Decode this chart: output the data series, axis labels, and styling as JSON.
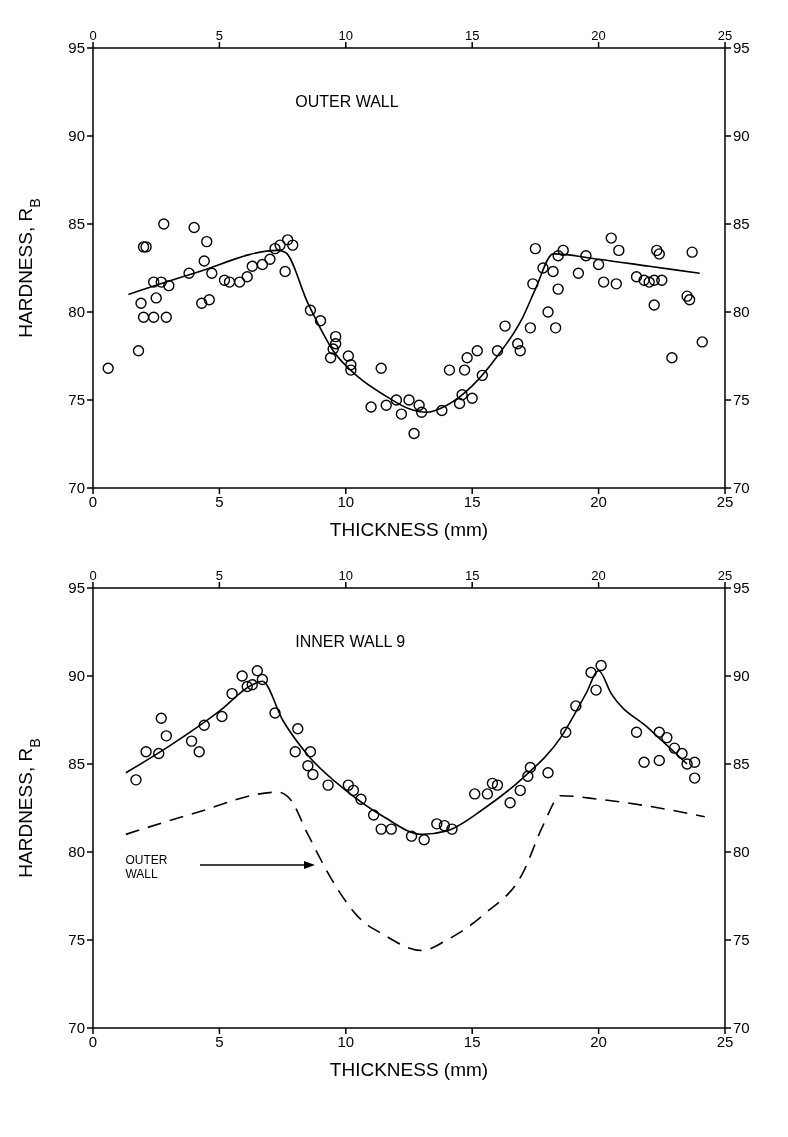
{
  "chart_data": [
    {
      "type": "scatter",
      "xlabel": "THICKNESS (mm)",
      "ylabel": "HARDNESS, R$_{B}$",
      "annotations": [
        "OUTER WALL"
      ],
      "xlim": [
        0,
        25
      ],
      "xticks": [
        0,
        5,
        10,
        15,
        20,
        25
      ],
      "x2lim": [
        0,
        25
      ],
      "x2ticks": [
        0,
        5,
        10,
        15,
        20,
        25
      ],
      "ylim": [
        70,
        95
      ],
      "yticks": [
        70,
        75,
        80,
        85,
        90,
        95
      ],
      "y2lim": [
        70,
        95
      ],
      "y2ticks": [
        70,
        75,
        80,
        85,
        90,
        95
      ],
      "series": [
        {
          "marker": "circle",
          "color": "#000000",
          "x": [
            0.6,
            1.8,
            1.9,
            2.0,
            2.1,
            2.0,
            2.4,
            2.4,
            2.5,
            2.7,
            2.8,
            2.9,
            3.0,
            3.8,
            4.0,
            4.3,
            4.4,
            4.5,
            4.6,
            4.7,
            5.2,
            5.4,
            5.8,
            6.1,
            6.3,
            6.7,
            7.0,
            7.2,
            7.4,
            7.6,
            7.7,
            7.9,
            8.6,
            9.0,
            9.4,
            9.6,
            9.6,
            9.5,
            10.1,
            10.2,
            10.2,
            11.0,
            11.4,
            11.6,
            12.0,
            12.2,
            12.5,
            12.7,
            12.9,
            13.0,
            13.8,
            14.1,
            14.5,
            14.6,
            14.7,
            14.8,
            15.0,
            15.2,
            15.4,
            16.0,
            16.3,
            16.8,
            16.9,
            17.3,
            17.4,
            17.5,
            17.8,
            18.0,
            18.2,
            18.3,
            18.4,
            18.6,
            18.4,
            19.2,
            19.5,
            20.0,
            20.2,
            20.5,
            20.7,
            20.8,
            21.5,
            21.8,
            22.0,
            22.2,
            22.2,
            22.3,
            22.4,
            22.5,
            22.9,
            23.5,
            23.6,
            23.7,
            24.1
          ],
          "values": [
            76.8,
            77.8,
            80.5,
            83.7,
            83.7,
            79.7,
            79.7,
            81.7,
            80.8,
            81.7,
            85.0,
            79.7,
            81.5,
            82.2,
            84.8,
            80.5,
            82.9,
            84.0,
            80.7,
            82.2,
            81.8,
            81.7,
            81.7,
            82.0,
            82.6,
            82.7,
            83.0,
            83.6,
            83.8,
            82.3,
            84.1,
            83.8,
            80.1,
            79.5,
            77.4,
            78.6,
            78.2,
            77.9,
            77.5,
            77.0,
            76.7,
            74.6,
            76.8,
            74.7,
            75.0,
            74.2,
            75.0,
            73.1,
            74.7,
            74.3,
            74.4,
            76.7,
            74.8,
            75.3,
            76.7,
            77.4,
            75.1,
            77.8,
            76.4,
            77.8,
            79.2,
            78.2,
            77.8,
            79.1,
            81.6,
            83.6,
            82.5,
            80.0,
            82.3,
            79.1,
            81.3,
            83.5,
            83.2,
            82.2,
            83.2,
            82.7,
            81.7,
            84.2,
            81.6,
            83.5,
            82.0,
            81.8,
            81.7,
            80.4,
            81.8,
            83.5,
            83.3,
            81.8,
            77.4,
            80.9,
            80.7,
            83.4,
            78.3
          ]
        },
        {
          "type": "line",
          "color": "#000000",
          "line_style": "solid",
          "x": [
            1.4,
            4,
            7.3,
            7.6,
            8.5,
            9.5,
            10.5,
            11.5,
            12.5,
            13.2,
            14,
            15,
            16,
            17,
            17.5,
            18.2,
            20,
            22,
            24
          ],
          "values": [
            81.0,
            82.2,
            83.5,
            83.4,
            80.5,
            77.8,
            76.3,
            75.3,
            74.5,
            74.3,
            74.7,
            75.8,
            77.5,
            79.7,
            81.3,
            83.3,
            83.0,
            82.6,
            82.2
          ]
        }
      ]
    },
    {
      "type": "scatter",
      "xlabel": "THICKNESS (mm)",
      "ylabel": "HARDNESS, R$_{B}$",
      "annotations": [
        "INNER WALL 9",
        "OUTER WALL"
      ],
      "xlim": [
        0,
        25
      ],
      "xticks": [
        0,
        5,
        10,
        15,
        20,
        25
      ],
      "x2lim": [
        0,
        25
      ],
      "x2ticks": [
        0,
        5,
        10,
        15,
        20,
        25
      ],
      "ylim": [
        70,
        95
      ],
      "yticks": [
        70,
        75,
        80,
        85,
        90,
        95
      ],
      "y2lim": [
        70,
        95
      ],
      "y2ticks": [
        70,
        75,
        80,
        85,
        90,
        95
      ],
      "series": [
        {
          "marker": "circle",
          "color": "#000000",
          "x": [
            1.7,
            2.1,
            2.6,
            2.7,
            2.9,
            3.9,
            4.2,
            4.4,
            5.1,
            5.5,
            5.9,
            6.1,
            6.3,
            6.5,
            6.7,
            7.2,
            8.0,
            8.1,
            8.5,
            8.6,
            8.7,
            9.3,
            10.1,
            10.3,
            10.6,
            11.1,
            11.4,
            11.8,
            12.6,
            13.1,
            13.6,
            13.9,
            14.2,
            15.1,
            15.6,
            15.8,
            16.0,
            16.5,
            16.9,
            17.2,
            17.3,
            18.0,
            18.7,
            19.1,
            19.7,
            19.9,
            20.1,
            21.5,
            21.8,
            22.4,
            22.4,
            22.7,
            23.0,
            23.3,
            23.5,
            23.8,
            23.8
          ],
          "values": [
            84.1,
            85.7,
            85.6,
            87.6,
            86.6,
            86.3,
            85.7,
            87.2,
            87.7,
            89.0,
            90.0,
            89.4,
            89.5,
            90.3,
            89.8,
            87.9,
            85.7,
            87.0,
            84.9,
            85.7,
            84.4,
            83.8,
            83.8,
            83.5,
            83.0,
            82.1,
            81.3,
            81.3,
            80.9,
            80.7,
            81.6,
            81.5,
            81.3,
            83.3,
            83.3,
            83.9,
            83.8,
            82.8,
            83.5,
            84.3,
            84.8,
            84.5,
            86.8,
            88.3,
            90.2,
            89.2,
            90.6,
            86.8,
            85.1,
            86.8,
            85.2,
            86.5,
            85.9,
            85.6,
            85.0,
            84.2,
            85.1
          ]
        },
        {
          "type": "line",
          "color": "#000000",
          "line_style": "solid",
          "x": [
            1.3,
            3,
            5,
            6.3,
            6.7,
            7.5,
            8.5,
            10,
            11.5,
            13,
            14,
            15.5,
            17,
            18.5,
            19.5,
            20.0,
            20.5,
            22,
            23.5
          ],
          "values": [
            84.5,
            86.0,
            88.0,
            89.5,
            89.7,
            87.5,
            85.5,
            83.5,
            82.0,
            81.0,
            81.2,
            82.5,
            84.2,
            86.5,
            89.0,
            90.3,
            89.0,
            87.0,
            85.0
          ]
        },
        {
          "type": "line",
          "color": "#000000",
          "line_style": "dashed",
          "x": [
            1.3,
            4,
            7.3,
            7.8,
            8.5,
            9.5,
            10.5,
            11.5,
            13,
            14,
            15.5,
            17,
            17.8,
            18.5,
            20,
            22,
            24.2
          ],
          "values": [
            81.0,
            82.2,
            83.4,
            83.0,
            81.0,
            78.3,
            76.3,
            75.3,
            74.4,
            75.0,
            76.5,
            78.8,
            81.5,
            83.2,
            83.0,
            82.6,
            82.0
          ]
        }
      ]
    }
  ]
}
